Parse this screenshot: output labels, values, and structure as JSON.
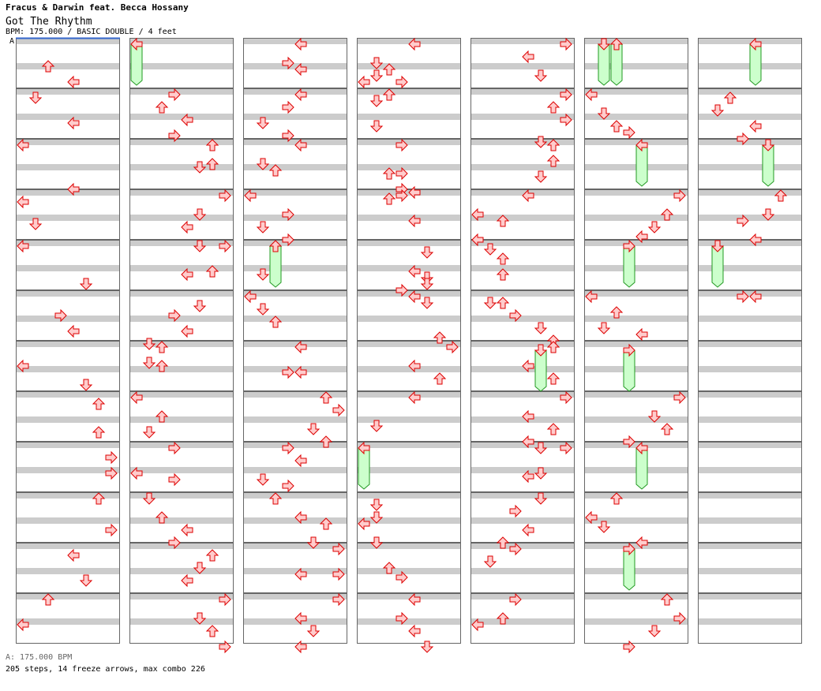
{
  "header": {
    "artist": "Fracus & Darwin feat. Becca Hossany",
    "title": "Got The Rhythm",
    "info": "BPM: 175.000 / BASIC DOUBLE / 4 feet"
  },
  "bpm_marker": "A",
  "footer": {
    "bpm_line": "A: 175.000 BPM",
    "stats": "205 steps, 14 freeze arrows, max combo 226"
  },
  "colors": {
    "stripe": "#cccccc",
    "arrow_fill": "#ffcccc",
    "arrow_stroke": "#dd0000",
    "freeze_fill": "#ccffcc",
    "freeze_stroke": "#229922",
    "bpm_line": "#3366cc"
  },
  "chart": {
    "lanes": [
      "left",
      "down",
      "up",
      "right",
      "left",
      "down",
      "up",
      "right"
    ],
    "columns": 7,
    "measures_per_column": 12,
    "rows_per_measure": 4,
    "notes": [
      [
        0,
        1,
        3,
        2
      ],
      [
        0,
        3,
        0,
        4
      ],
      [
        0,
        4,
        1,
        1
      ],
      [
        0,
        6,
        1,
        4
      ],
      [
        0,
        8,
        0,
        0
      ],
      [
        0,
        11,
        2,
        4
      ],
      [
        0,
        12,
        2,
        0
      ],
      [
        0,
        14,
        1,
        1
      ],
      [
        0,
        16,
        0,
        0
      ],
      [
        0,
        19,
        0,
        5
      ],
      [
        0,
        21,
        2,
        3
      ],
      [
        0,
        22,
        3,
        4
      ],
      [
        0,
        25,
        2,
        0
      ],
      [
        0,
        27,
        0,
        5
      ],
      [
        0,
        28,
        2,
        6
      ],
      [
        0,
        30,
        3,
        6
      ],
      [
        0,
        32,
        3,
        7
      ],
      [
        0,
        34,
        0,
        7
      ],
      [
        0,
        36,
        0,
        6
      ],
      [
        0,
        38,
        2,
        7
      ],
      [
        0,
        40,
        2,
        4
      ],
      [
        0,
        42,
        2,
        5
      ],
      [
        0,
        44,
        0,
        2
      ],
      [
        0,
        46,
        0,
        0
      ],
      [
        1,
        0,
        0,
        0,
        3
      ],
      [
        1,
        4,
        0,
        3
      ],
      [
        1,
        5,
        0,
        2
      ],
      [
        1,
        6,
        0,
        4
      ],
      [
        1,
        7,
        1,
        3
      ],
      [
        1,
        8,
        0,
        6
      ],
      [
        1,
        9,
        3,
        5
      ],
      [
        1,
        9,
        2,
        6
      ],
      [
        1,
        12,
        0,
        7
      ],
      [
        1,
        13,
        2,
        5
      ],
      [
        1,
        14,
        2,
        4
      ],
      [
        1,
        16,
        0,
        5
      ],
      [
        1,
        16,
        0,
        7
      ],
      [
        1,
        18,
        1,
        4
      ],
      [
        1,
        18,
        0,
        6
      ],
      [
        1,
        20,
        3,
        5
      ],
      [
        1,
        21,
        2,
        3
      ],
      [
        1,
        22,
        3,
        4
      ],
      [
        1,
        23,
        3,
        1
      ],
      [
        1,
        24,
        0,
        2
      ],
      [
        1,
        25,
        1,
        1
      ],
      [
        1,
        25,
        2,
        2
      ],
      [
        1,
        28,
        0,
        0
      ],
      [
        1,
        29,
        2,
        2
      ],
      [
        1,
        30,
        3,
        1
      ],
      [
        1,
        32,
        0,
        3
      ],
      [
        1,
        34,
        0,
        0
      ],
      [
        1,
        34,
        2,
        3
      ],
      [
        1,
        36,
        0,
        1
      ],
      [
        1,
        37,
        2,
        2
      ],
      [
        1,
        38,
        2,
        4
      ],
      [
        1,
        39,
        2,
        3
      ],
      [
        1,
        40,
        2,
        6
      ],
      [
        1,
        41,
        2,
        5
      ],
      [
        1,
        42,
        2,
        4
      ],
      [
        1,
        44,
        0,
        7
      ],
      [
        1,
        45,
        2,
        5
      ],
      [
        1,
        46,
        2,
        6
      ],
      [
        1,
        47,
        3,
        7
      ],
      [
        2,
        0,
        0,
        4
      ],
      [
        2,
        1,
        2,
        3
      ],
      [
        2,
        2,
        0,
        4
      ],
      [
        2,
        4,
        0,
        4
      ],
      [
        2,
        5,
        0,
        3
      ],
      [
        2,
        6,
        1,
        1
      ],
      [
        2,
        7,
        1,
        3
      ],
      [
        2,
        8,
        0,
        4
      ],
      [
        2,
        9,
        2,
        1
      ],
      [
        2,
        10,
        0,
        2
      ],
      [
        2,
        12,
        0,
        0
      ],
      [
        2,
        13,
        2,
        3
      ],
      [
        2,
        14,
        2,
        1
      ],
      [
        2,
        15,
        2,
        3
      ],
      [
        2,
        16,
        0,
        2,
        3
      ],
      [
        2,
        18,
        1,
        1
      ],
      [
        2,
        20,
        0,
        0
      ],
      [
        2,
        21,
        0,
        1
      ],
      [
        2,
        22,
        0,
        2
      ],
      [
        2,
        24,
        0,
        4
      ],
      [
        2,
        26,
        0,
        3
      ],
      [
        2,
        26,
        0,
        4
      ],
      [
        2,
        28,
        0,
        6
      ],
      [
        2,
        29,
        0,
        7
      ],
      [
        2,
        30,
        2,
        5
      ],
      [
        2,
        31,
        2,
        6
      ],
      [
        2,
        32,
        0,
        3
      ],
      [
        2,
        33,
        0,
        4
      ],
      [
        2,
        34,
        2,
        1
      ],
      [
        2,
        35,
        0,
        3
      ],
      [
        2,
        36,
        0,
        2
      ],
      [
        2,
        37,
        2,
        4
      ],
      [
        2,
        38,
        0,
        6
      ],
      [
        2,
        39,
        2,
        5
      ],
      [
        2,
        40,
        0,
        7
      ],
      [
        2,
        42,
        0,
        4
      ],
      [
        2,
        42,
        0,
        7
      ],
      [
        2,
        44,
        0,
        7
      ],
      [
        2,
        45,
        2,
        4
      ],
      [
        2,
        46,
        2,
        5
      ],
      [
        2,
        47,
        3,
        4
      ],
      [
        3,
        0,
        0,
        4
      ],
      [
        3,
        1,
        2,
        1
      ],
      [
        3,
        2,
        2,
        1
      ],
      [
        3,
        2,
        0,
        2
      ],
      [
        3,
        3,
        0,
        0
      ],
      [
        3,
        3,
        0,
        3
      ],
      [
        3,
        4,
        2,
        1
      ],
      [
        3,
        4,
        0,
        2
      ],
      [
        3,
        6,
        2,
        1
      ],
      [
        3,
        8,
        0,
        3
      ],
      [
        3,
        10,
        1,
        2
      ],
      [
        3,
        10,
        1,
        3
      ],
      [
        3,
        11,
        2,
        3
      ],
      [
        3,
        11,
        3,
        4
      ],
      [
        3,
        12,
        1,
        2
      ],
      [
        3,
        12,
        0,
        3
      ],
      [
        3,
        14,
        0,
        4
      ],
      [
        3,
        16,
        2,
        5
      ],
      [
        3,
        18,
        0,
        4
      ],
      [
        3,
        18,
        2,
        5
      ],
      [
        3,
        19,
        2,
        3
      ],
      [
        3,
        19,
        0,
        5
      ],
      [
        3,
        20,
        0,
        4
      ],
      [
        3,
        20,
        2,
        5
      ],
      [
        3,
        23,
        1,
        6
      ],
      [
        3,
        24,
        0,
        7
      ],
      [
        3,
        25,
        2,
        4
      ],
      [
        3,
        26,
        2,
        6
      ],
      [
        3,
        28,
        0,
        4
      ],
      [
        3,
        30,
        1,
        1
      ],
      [
        3,
        32,
        0,
        0,
        3
      ],
      [
        3,
        36,
        2,
        1
      ],
      [
        3,
        37,
        2,
        1
      ],
      [
        3,
        38,
        0,
        0
      ],
      [
        3,
        39,
        2,
        1
      ],
      [
        3,
        41,
        2,
        2
      ],
      [
        3,
        42,
        1,
        3
      ],
      [
        3,
        44,
        0,
        4
      ],
      [
        3,
        45,
        2,
        3
      ],
      [
        3,
        46,
        2,
        4
      ],
      [
        3,
        47,
        3,
        5
      ],
      [
        4,
        0,
        0,
        7
      ],
      [
        4,
        1,
        0,
        4
      ],
      [
        4,
        2,
        2,
        5
      ],
      [
        4,
        4,
        0,
        7
      ],
      [
        4,
        5,
        0,
        6
      ],
      [
        4,
        6,
        0,
        7
      ],
      [
        4,
        7,
        3,
        5
      ],
      [
        4,
        8,
        0,
        6
      ],
      [
        4,
        9,
        1,
        6
      ],
      [
        4,
        10,
        2,
        5
      ],
      [
        4,
        12,
        0,
        4
      ],
      [
        4,
        13,
        2,
        0
      ],
      [
        4,
        14,
        0,
        2
      ],
      [
        4,
        15,
        2,
        0
      ],
      [
        4,
        16,
        1,
        1
      ],
      [
        4,
        17,
        0,
        2
      ],
      [
        4,
        18,
        1,
        2
      ],
      [
        4,
        20,
        2,
        1
      ],
      [
        4,
        20,
        2,
        2
      ],
      [
        4,
        21,
        2,
        3
      ],
      [
        4,
        22,
        2,
        5
      ],
      [
        4,
        23,
        2,
        6
      ],
      [
        4,
        24,
        0,
        6
      ],
      [
        4,
        24,
        1,
        5,
        3
      ],
      [
        4,
        25,
        2,
        4
      ],
      [
        4,
        26,
        2,
        6
      ],
      [
        4,
        28,
        0,
        7
      ],
      [
        4,
        29,
        2,
        4
      ],
      [
        4,
        30,
        2,
        6
      ],
      [
        4,
        31,
        2,
        4
      ],
      [
        4,
        32,
        0,
        5
      ],
      [
        4,
        32,
        0,
        7
      ],
      [
        4,
        34,
        1,
        4
      ],
      [
        4,
        34,
        0,
        5
      ],
      [
        4,
        36,
        0,
        5
      ],
      [
        4,
        37,
        0,
        3
      ],
      [
        4,
        38,
        2,
        4
      ],
      [
        4,
        39,
        2,
        2
      ],
      [
        4,
        40,
        0,
        3
      ],
      [
        4,
        41,
        0,
        1
      ],
      [
        4,
        44,
        0,
        3
      ],
      [
        4,
        45,
        2,
        2
      ],
      [
        4,
        46,
        0,
        0
      ],
      [
        5,
        0,
        0,
        1,
        3
      ],
      [
        5,
        0,
        0,
        2,
        3
      ],
      [
        5,
        4,
        0,
        0
      ],
      [
        5,
        5,
        2,
        1
      ],
      [
        5,
        6,
        2,
        2
      ],
      [
        5,
        7,
        0,
        3
      ],
      [
        5,
        8,
        0,
        4,
        3
      ],
      [
        5,
        12,
        0,
        7
      ],
      [
        5,
        13,
        2,
        6
      ],
      [
        5,
        14,
        2,
        5
      ],
      [
        5,
        15,
        1,
        4
      ],
      [
        5,
        16,
        0,
        3,
        3
      ],
      [
        5,
        20,
        0,
        0
      ],
      [
        5,
        21,
        1,
        2
      ],
      [
        5,
        22,
        2,
        1
      ],
      [
        5,
        23,
        0,
        4
      ],
      [
        5,
        24,
        1,
        3,
        3
      ],
      [
        5,
        28,
        0,
        7
      ],
      [
        5,
        29,
        2,
        5
      ],
      [
        5,
        30,
        2,
        6
      ],
      [
        5,
        31,
        2,
        3
      ],
      [
        5,
        32,
        0,
        4,
        3
      ],
      [
        5,
        36,
        0,
        2
      ],
      [
        5,
        37,
        2,
        0
      ],
      [
        5,
        38,
        1,
        1
      ],
      [
        5,
        39,
        2,
        4
      ],
      [
        5,
        40,
        0,
        3,
        3
      ],
      [
        5,
        44,
        0,
        6
      ],
      [
        5,
        45,
        2,
        7
      ],
      [
        5,
        46,
        2,
        5
      ],
      [
        5,
        47,
        3,
        3
      ],
      [
        6,
        0,
        0,
        4,
        3
      ],
      [
        6,
        4,
        1,
        2
      ],
      [
        6,
        5,
        1,
        1
      ],
      [
        6,
        6,
        2,
        4
      ],
      [
        6,
        7,
        2,
        3
      ],
      [
        6,
        8,
        0,
        5,
        3
      ],
      [
        6,
        12,
        0,
        6
      ],
      [
        6,
        13,
        2,
        5
      ],
      [
        6,
        14,
        0,
        3
      ],
      [
        6,
        15,
        2,
        4
      ],
      [
        6,
        16,
        0,
        1,
        3
      ],
      [
        6,
        20,
        0,
        3
      ],
      [
        6,
        20,
        0,
        4
      ]
    ]
  }
}
